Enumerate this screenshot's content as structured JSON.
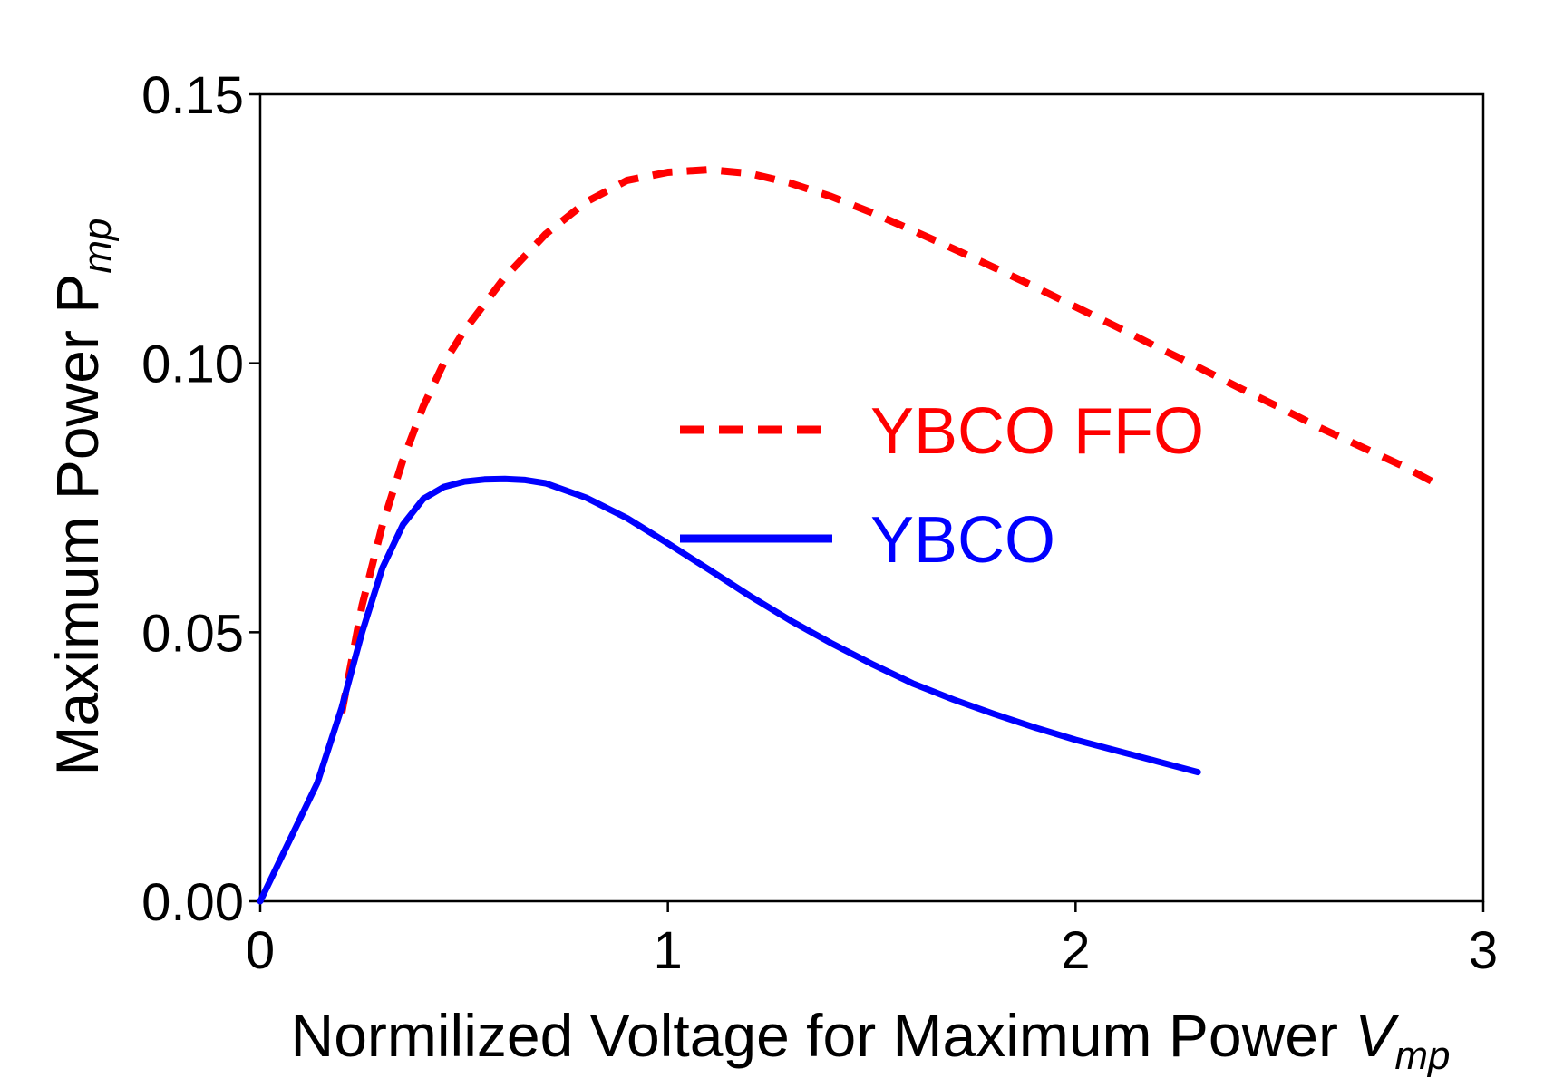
{
  "chart_data": {
    "type": "line",
    "title": "",
    "xlabel": {
      "main": "Normilized Voltage for Maximum Power ",
      "var": "V",
      "sub": "mp"
    },
    "ylabel": {
      "main": "Maximum Power P",
      "sub": "mp"
    },
    "xlim": [
      0,
      3
    ],
    "ylim": [
      0,
      0.15
    ],
    "xticks": [
      0,
      1,
      2,
      3
    ],
    "xtick_labels": [
      "0",
      "1",
      "2",
      "3"
    ],
    "yticks": [
      0,
      0.05,
      0.1,
      0.15
    ],
    "ytick_labels": [
      "0.00",
      "0.05",
      "0.10",
      "0.15"
    ],
    "grid": false,
    "legend_position": "center",
    "series": [
      {
        "name": "YBCO FFO",
        "color": "#ff0000",
        "style": "dashed",
        "x": [
          0.2,
          0.25,
          0.3,
          0.35,
          0.4,
          0.45,
          0.5,
          0.6,
          0.7,
          0.8,
          0.9,
          1.0,
          1.1,
          1.2,
          1.3,
          1.4,
          1.5,
          1.6,
          1.7,
          1.8,
          1.9,
          2.0,
          2.1,
          2.2,
          2.3,
          2.4,
          2.5,
          2.6,
          2.7,
          2.8,
          2.9
        ],
        "y": [
          0.035,
          0.055,
          0.07,
          0.082,
          0.092,
          0.1,
          0.106,
          0.116,
          0.124,
          0.13,
          0.134,
          0.1355,
          0.136,
          0.1353,
          0.1335,
          0.131,
          0.128,
          0.1247,
          0.1213,
          0.1178,
          0.1142,
          0.1105,
          0.1068,
          0.103,
          0.0993,
          0.0955,
          0.0918,
          0.088,
          0.0845,
          0.081,
          0.077
        ]
      },
      {
        "name": "YBCO",
        "color": "#0000ff",
        "style": "solid",
        "x": [
          0.0,
          0.07,
          0.14,
          0.2,
          0.25,
          0.3,
          0.35,
          0.4,
          0.45,
          0.5,
          0.55,
          0.6,
          0.65,
          0.7,
          0.8,
          0.9,
          1.0,
          1.1,
          1.2,
          1.3,
          1.4,
          1.5,
          1.6,
          1.7,
          1.8,
          1.9,
          2.0,
          2.1,
          2.2,
          2.3
        ],
        "y": [
          0.0,
          0.011,
          0.022,
          0.036,
          0.05,
          0.062,
          0.07,
          0.0748,
          0.077,
          0.078,
          0.0784,
          0.0785,
          0.0783,
          0.0777,
          0.075,
          0.0712,
          0.0665,
          0.0617,
          0.0568,
          0.0522,
          0.048,
          0.0441,
          0.0405,
          0.0375,
          0.0348,
          0.0323,
          0.03,
          0.028,
          0.026,
          0.024
        ]
      }
    ]
  }
}
